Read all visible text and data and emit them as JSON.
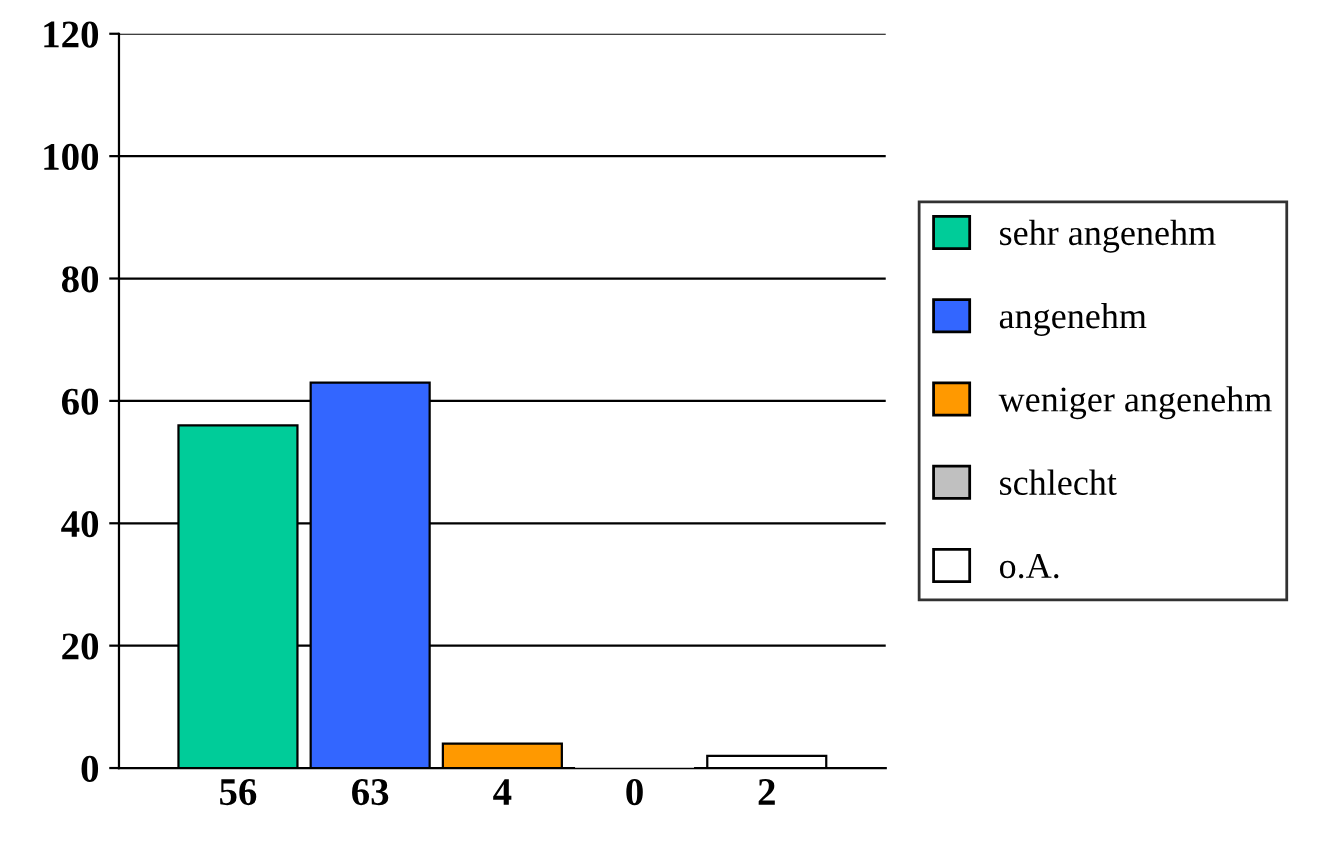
{
  "chart_data": {
    "type": "bar",
    "categories": [
      "56",
      "63",
      "4",
      "0",
      "2"
    ],
    "series": [
      {
        "name": "sehr angenehm",
        "color": "#00cc99",
        "values": [
          56,
          null,
          null,
          null,
          null
        ]
      },
      {
        "name": "angenehm",
        "color": "#3366ff",
        "values": [
          null,
          63,
          null,
          null,
          null
        ]
      },
      {
        "name": "weniger angenehm",
        "color": "#ff9900",
        "values": [
          null,
          null,
          4,
          null,
          null
        ]
      },
      {
        "name": "schlecht",
        "color": "#c0c0c0",
        "values": [
          null,
          null,
          null,
          0,
          null
        ]
      },
      {
        "name": "o.A.",
        "color": "#ffffff",
        "values": [
          null,
          null,
          null,
          null,
          2
        ]
      }
    ],
    "ylim": [
      0,
      120
    ],
    "yticks": [
      0,
      20,
      40,
      60,
      80,
      100,
      120
    ],
    "grid": "y",
    "legend": "right"
  }
}
